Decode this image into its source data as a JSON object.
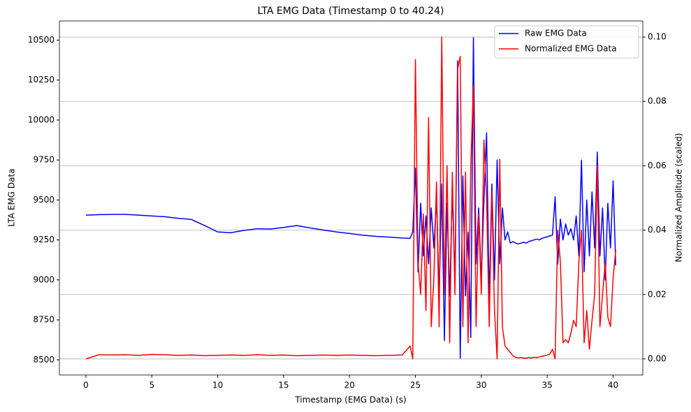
{
  "chart_data": {
    "type": "line",
    "title": "LTA EMG Data (Timestamp 0 to 40.24)",
    "x_label": "Timestamp (EMG Data) (s)",
    "y_label": "LTA EMG Data",
    "y2_label": "Normalized Amplitude (scaled)",
    "x": [
      0,
      1,
      2,
      3,
      4,
      5,
      6,
      7,
      8,
      9,
      10,
      11,
      12,
      13,
      14,
      15,
      16,
      17,
      18,
      19,
      20,
      21,
      22,
      23,
      24,
      24.6,
      24.8,
      25.0,
      25.2,
      25.4,
      25.6,
      25.8,
      26.0,
      26.2,
      26.4,
      26.6,
      26.8,
      27.0,
      27.2,
      27.4,
      27.6,
      27.8,
      28.0,
      28.2,
      28.4,
      28.6,
      28.8,
      29.0,
      29.2,
      29.4,
      29.6,
      29.8,
      30.0,
      30.2,
      30.4,
      30.6,
      30.8,
      31.0,
      31.2,
      31.4,
      31.6,
      31.8,
      32.0,
      32.2,
      32.4,
      32.6,
      32.8,
      33.0,
      33.2,
      33.4,
      33.6,
      33.8,
      34.0,
      34.2,
      34.4,
      34.6,
      34.8,
      35.0,
      35.2,
      35.4,
      35.6,
      35.8,
      36.0,
      36.2,
      36.4,
      36.6,
      36.8,
      37.0,
      37.2,
      37.4,
      37.6,
      37.8,
      38.0,
      38.2,
      38.4,
      38.6,
      38.8,
      39.0,
      39.2,
      39.4,
      39.6,
      39.8,
      40.0,
      40.2
    ],
    "series": [
      {
        "name": "Raw EMG Data",
        "color": "#0000ff",
        "axis": "y",
        "values": [
          9405,
          9408,
          9410,
          9410,
          9405,
          9400,
          9395,
          9385,
          9378,
          9340,
          9300,
          9295,
          9310,
          9320,
          9318,
          9328,
          9340,
          9325,
          9312,
          9300,
          9290,
          9280,
          9272,
          9268,
          9262,
          9260,
          9300,
          9700,
          9050,
          9480,
          9150,
          9400,
          9100,
          9450,
          9200,
          9520,
          8900,
          9600,
          8620,
          9480,
          8900,
          9550,
          9000,
          10370,
          8510,
          9650,
          8900,
          9300,
          8640,
          10515,
          9100,
          9450,
          9000,
          9500,
          9920,
          8870,
          9600,
          9000,
          9750,
          9100,
          9450,
          9250,
          9300,
          9230,
          9240,
          9230,
          9225,
          9230,
          9235,
          9230,
          9240,
          9245,
          9250,
          9255,
          9250,
          9260,
          9265,
          9270,
          9275,
          9280,
          9520,
          9100,
          9380,
          9250,
          9350,
          9280,
          9320,
          9250,
          9400,
          9150,
          9750,
          9050,
          9500,
          9150,
          9550,
          9200,
          9800,
          9150,
          9450,
          9000,
          9480,
          9200,
          9620,
          9090
        ]
      },
      {
        "name": "Normalized EMG Data",
        "color": "#ff0000",
        "axis": "y2",
        "values": [
          0,
          0.0013,
          0.0012,
          0.0013,
          0.0011,
          0.0014,
          0.0013,
          0.0011,
          0.0012,
          0.001,
          0.0011,
          0.0012,
          0.0011,
          0.0013,
          0.0011,
          0.0012,
          0.001,
          0.0011,
          0.0012,
          0.0011,
          0.0012,
          0.0011,
          0.001,
          0.0011,
          0.0012,
          0.004,
          0,
          0.093,
          0.03,
          0.02,
          0.045,
          0.015,
          0.075,
          0.01,
          0.025,
          0.055,
          0.01,
          0.1,
          0.02,
          0.06,
          0.005,
          0.058,
          0.02,
          0.09,
          0.094,
          0.01,
          0.058,
          0.005,
          0.06,
          0.085,
          0.01,
          0.045,
          0.02,
          0.068,
          0.05,
          0.01,
          0.052,
          0.015,
          0,
          0.062,
          0.01,
          0.004,
          0.003,
          0.002,
          0.001,
          0.0005,
          0.0003,
          0.0004,
          0.0003,
          0.0002,
          0.0004,
          0.0003,
          0.0005,
          0.0004,
          0.0006,
          0.0008,
          0.001,
          0.0012,
          0.0015,
          0.003,
          0,
          0.04,
          0.03,
          0.005,
          0.006,
          0.005,
          0.008,
          0.012,
          0.01,
          0.03,
          0.04,
          0.005,
          0.015,
          0.003,
          0.012,
          0.02,
          0.06,
          0.01,
          0.02,
          0.03,
          0.013,
          0.01,
          0.025,
          0.034
        ]
      }
    ],
    "xlim": [
      -2.012,
      42.252
    ],
    "xticks": [
      0,
      5,
      10,
      15,
      20,
      25,
      30,
      35,
      40
    ],
    "ylim": [
      8405,
      10620
    ],
    "yticks": [
      8500,
      8750,
      9000,
      9250,
      9500,
      9750,
      10000,
      10250,
      10500
    ],
    "y2lim": [
      -0.005,
      0.105
    ],
    "y2ticks": [
      {
        "value": 0,
        "label": "0.00"
      },
      {
        "value": 0.02,
        "label": "0.02"
      },
      {
        "value": 0.04,
        "label": "0.04"
      },
      {
        "value": 0.06,
        "label": "0.06"
      },
      {
        "value": 0.08,
        "label": "0.08"
      },
      {
        "value": 0.1,
        "label": "0.10"
      }
    ],
    "y_color": "#0000ff",
    "y2_color": "#ff0000",
    "grid": "y2",
    "legend": "upper-right"
  }
}
